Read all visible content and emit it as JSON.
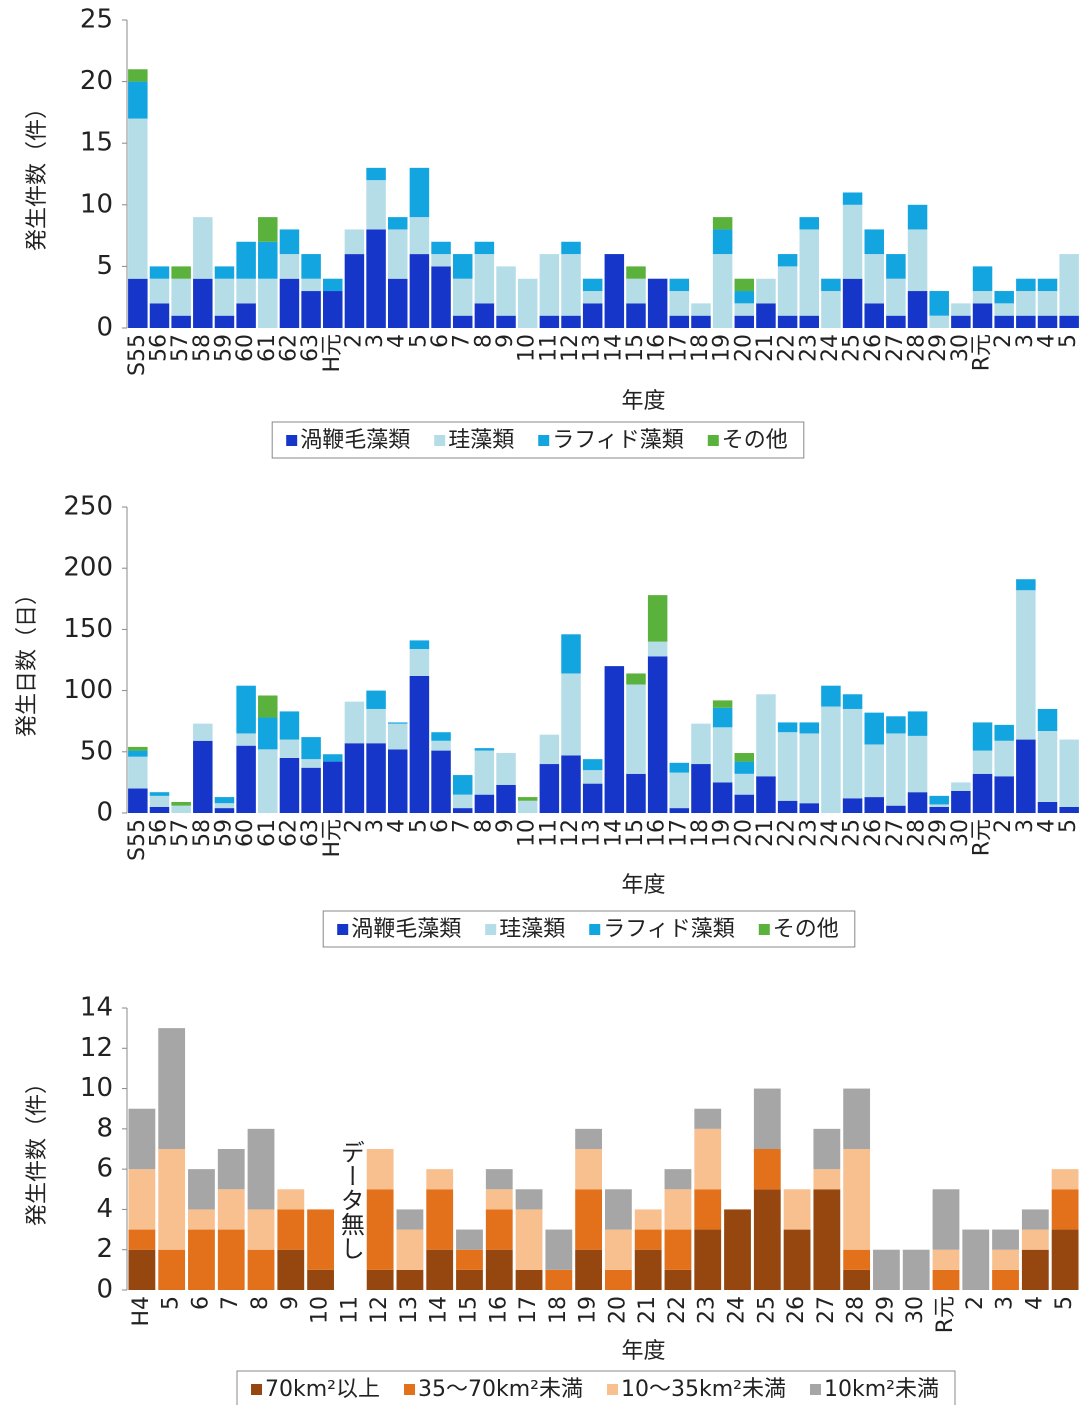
{
  "chart_data": [
    {
      "type": "stacked_bar",
      "y_label": "発生件数（件）",
      "x_label": "年度",
      "categories": [
        "S55",
        "56",
        "57",
        "58",
        "59",
        "60",
        "61",
        "62",
        "63",
        "H元",
        "2",
        "3",
        "4",
        "5",
        "6",
        "7",
        "8",
        "9",
        "10",
        "11",
        "12",
        "13",
        "14",
        "15",
        "16",
        "17",
        "18",
        "19",
        "20",
        "21",
        "22",
        "23",
        "24",
        "25",
        "26",
        "27",
        "28",
        "29",
        "30",
        "R元",
        "2",
        "3",
        "4",
        "5"
      ],
      "ylim": [
        0,
        25
      ],
      "yticks": [
        0,
        5,
        10,
        15,
        20,
        25
      ],
      "series": [
        {
          "name": "渦鞭毛藻類",
          "color": "#1536c8",
          "values": [
            4,
            2,
            1,
            4,
            1,
            2,
            0,
            4,
            3,
            3,
            6,
            8,
            4,
            6,
            5,
            1,
            2,
            1,
            0,
            1,
            1,
            2,
            6,
            2,
            4,
            1,
            1,
            0,
            1,
            2,
            1,
            1,
            0,
            4,
            2,
            1,
            3,
            0,
            1,
            2,
            1,
            1,
            1,
            1
          ]
        },
        {
          "name": "珪藻類",
          "color": "#b5dde8",
          "values": [
            13,
            2,
            3,
            5,
            3,
            2,
            4,
            2,
            1,
            0,
            2,
            4,
            4,
            3,
            1,
            3,
            4,
            4,
            4,
            5,
            5,
            1,
            0,
            2,
            0,
            2,
            1,
            6,
            1,
            2,
            4,
            7,
            3,
            6,
            4,
            3,
            5,
            1,
            1,
            1,
            1,
            2,
            2,
            5
          ]
        },
        {
          "name": "ラフィド藻類",
          "color": "#12a5e0",
          "values": [
            3,
            1,
            0,
            0,
            1,
            3,
            3,
            2,
            2,
            1,
            0,
            1,
            1,
            4,
            1,
            2,
            1,
            0,
            0,
            0,
            1,
            1,
            0,
            0,
            0,
            1,
            0,
            2,
            1,
            0,
            1,
            1,
            1,
            1,
            2,
            2,
            2,
            2,
            0,
            2,
            1,
            1,
            1,
            0
          ]
        },
        {
          "name": "その他",
          "color": "#5ab13c",
          "values": [
            1,
            0,
            1,
            0,
            0,
            0,
            2,
            0,
            0,
            0,
            0,
            0,
            0,
            0,
            0,
            0,
            0,
            0,
            0,
            0,
            0,
            0,
            0,
            1,
            0,
            0,
            0,
            1,
            1,
            0,
            0,
            0,
            0,
            0,
            0,
            0,
            0,
            0,
            0,
            0,
            0,
            0,
            0,
            0
          ]
        }
      ]
    },
    {
      "type": "stacked_bar",
      "y_label": "発生日数（日）",
      "x_label": "年度",
      "categories": [
        "S55",
        "56",
        "57",
        "58",
        "59",
        "60",
        "61",
        "62",
        "63",
        "H元",
        "2",
        "3",
        "4",
        "5",
        "6",
        "7",
        "8",
        "9",
        "10",
        "11",
        "12",
        "13",
        "14",
        "15",
        "16",
        "17",
        "18",
        "19",
        "20",
        "21",
        "22",
        "23",
        "24",
        "25",
        "26",
        "27",
        "28",
        "29",
        "30",
        "R元",
        "2",
        "3",
        "4",
        "5"
      ],
      "ylim": [
        0,
        250
      ],
      "yticks": [
        0,
        50,
        100,
        150,
        200,
        250
      ],
      "series": [
        {
          "name": "渦鞭毛藻類",
          "color": "#1536c8",
          "values": [
            20,
            5,
            0,
            59,
            4,
            55,
            0,
            45,
            37,
            42,
            57,
            57,
            52,
            112,
            51,
            4,
            15,
            23,
            0,
            40,
            47,
            24,
            120,
            32,
            128,
            4,
            40,
            25,
            15,
            30,
            10,
            8,
            0,
            12,
            13,
            6,
            17,
            5,
            18,
            32,
            30,
            60,
            9,
            5
          ]
        },
        {
          "name": "珪藻類",
          "color": "#b5dde8",
          "values": [
            26,
            9,
            6,
            14,
            4,
            10,
            52,
            15,
            7,
            0,
            34,
            28,
            21,
            22,
            8,
            11,
            36,
            26,
            10,
            24,
            67,
            11,
            0,
            73,
            12,
            29,
            33,
            45,
            17,
            67,
            56,
            57,
            87,
            73,
            43,
            59,
            46,
            2,
            7,
            19,
            29,
            122,
            58,
            55
          ]
        },
        {
          "name": "ラフィド藻類",
          "color": "#12a5e0",
          "values": [
            5,
            3,
            0,
            0,
            5,
            39,
            26,
            23,
            18,
            6,
            0,
            15,
            1,
            7,
            7,
            16,
            2,
            0,
            0,
            0,
            32,
            9,
            0,
            0,
            0,
            8,
            0,
            16,
            10,
            0,
            8,
            9,
            17,
            12,
            26,
            14,
            20,
            7,
            0,
            23,
            13,
            9,
            18,
            0
          ]
        },
        {
          "name": "その他",
          "color": "#5ab13c",
          "values": [
            3,
            0,
            3,
            0,
            0,
            0,
            18,
            0,
            0,
            0,
            0,
            0,
            0,
            0,
            0,
            0,
            0,
            0,
            3,
            0,
            0,
            0,
            0,
            9,
            38,
            0,
            0,
            6,
            7,
            0,
            0,
            0,
            0,
            0,
            0,
            0,
            0,
            0,
            0,
            0,
            0,
            0,
            0,
            0
          ]
        }
      ]
    },
    {
      "type": "stacked_bar",
      "y_label": "発生件数（件）",
      "x_label": "年度",
      "annotation": "データ無し",
      "categories": [
        "H4",
        "5",
        "6",
        "7",
        "8",
        "9",
        "10",
        "11",
        "12",
        "13",
        "14",
        "15",
        "16",
        "17",
        "18",
        "19",
        "20",
        "21",
        "22",
        "23",
        "24",
        "25",
        "26",
        "27",
        "28",
        "29",
        "30",
        "R元",
        "2",
        "3",
        "4",
        "5"
      ],
      "ylim": [
        0,
        14
      ],
      "yticks": [
        0,
        2,
        4,
        6,
        8,
        10,
        12,
        14
      ],
      "series": [
        {
          "name": "70km²以上",
          "color": "#96470f",
          "values": [
            2,
            0,
            0,
            0,
            0,
            2,
            1,
            null,
            1,
            1,
            2,
            1,
            2,
            1,
            0,
            2,
            0,
            2,
            1,
            3,
            4,
            5,
            3,
            5,
            1,
            0,
            0,
            0,
            0,
            0,
            2,
            3
          ]
        },
        {
          "name": "35～70km²未満",
          "color": "#e3701a",
          "values": [
            1,
            2,
            3,
            3,
            2,
            2,
            3,
            null,
            4,
            0,
            3,
            1,
            2,
            0,
            1,
            3,
            1,
            1,
            2,
            2,
            0,
            2,
            0,
            0,
            1,
            0,
            0,
            1,
            0,
            1,
            0,
            2
          ]
        },
        {
          "name": "10～35km²未満",
          "color": "#f8c08f",
          "values": [
            3,
            5,
            1,
            2,
            2,
            1,
            0,
            null,
            2,
            2,
            1,
            0,
            1,
            3,
            0,
            2,
            2,
            1,
            2,
            3,
            0,
            0,
            2,
            1,
            5,
            0,
            0,
            1,
            0,
            1,
            1,
            1
          ]
        },
        {
          "name": "10km²未満",
          "color": "#a6a6a6",
          "values": [
            3,
            6,
            2,
            2,
            4,
            0,
            0,
            null,
            0,
            1,
            0,
            1,
            1,
            1,
            2,
            1,
            2,
            0,
            1,
            1,
            0,
            3,
            0,
            2,
            3,
            2,
            2,
            3,
            3,
            1,
            1,
            0
          ]
        }
      ]
    }
  ]
}
